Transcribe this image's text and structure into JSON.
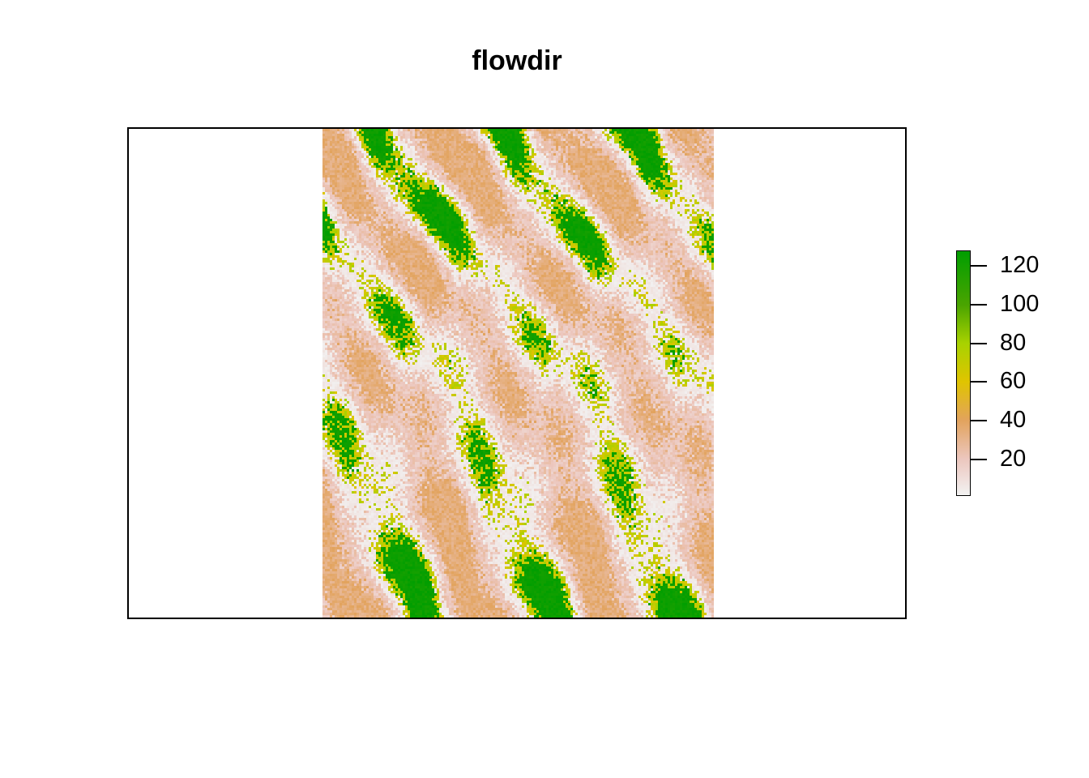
{
  "title": "flowdir",
  "map": {
    "layer_name": "flowdir",
    "value_range": [
      1,
      128
    ],
    "legend_placement": "right",
    "legend": {
      "ticks": [
        {
          "value": 120,
          "label": "120"
        },
        {
          "value": 100,
          "label": "100"
        },
        {
          "value": 80,
          "label": "80"
        },
        {
          "value": 60,
          "label": "60"
        },
        {
          "value": 40,
          "label": "40"
        },
        {
          "value": 20,
          "label": "20"
        }
      ],
      "color_stops": [
        {
          "value": 1,
          "color": "#f2f2f2"
        },
        {
          "value": 20,
          "color": "#ecc6bd"
        },
        {
          "value": 40,
          "color": "#e2a35d"
        },
        {
          "value": 60,
          "color": "#e0c400"
        },
        {
          "value": 80,
          "color": "#a8d200"
        },
        {
          "value": 100,
          "color": "#4aa400"
        },
        {
          "value": 128,
          "color": "#009e00"
        }
      ]
    }
  }
}
